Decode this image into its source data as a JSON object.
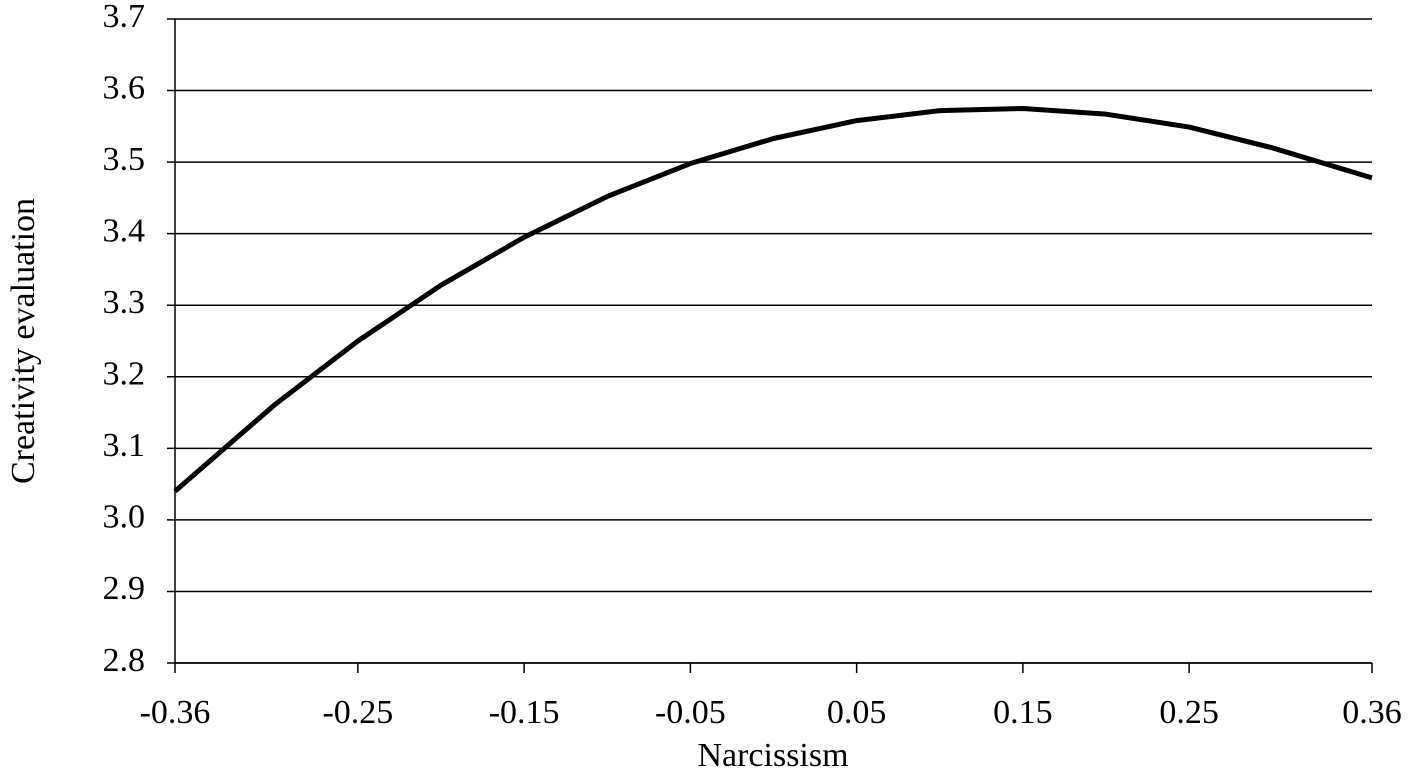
{
  "chart_data": {
    "type": "line",
    "x_label": "Narcissism",
    "y_label": "Creativity evaluation",
    "x": [
      -0.36,
      -0.3,
      -0.25,
      -0.2,
      -0.15,
      -0.1,
      -0.05,
      0,
      0.05,
      0.1,
      0.15,
      0.2,
      0.25,
      0.3,
      0.36
    ],
    "values": [
      3.04,
      3.161,
      3.25,
      3.328,
      3.395,
      3.452,
      3.498,
      3.533,
      3.558,
      3.572,
      3.575,
      3.567,
      3.549,
      3.52,
      3.478
    ],
    "color": "#000000",
    "xlim": [
      -0.36,
      0.36
    ],
    "xticks": [
      -0.36,
      -0.25,
      -0.15,
      -0.05,
      0.05,
      0.15,
      0.25,
      0.36
    ],
    "ylim": [
      2.8,
      3.7
    ],
    "yticks": [
      2.8,
      2.9,
      {
        "value": 3,
        "label": "3.0"
      },
      3.1,
      3.2,
      3.3,
      3.4,
      3.5,
      3.6,
      3.7
    ],
    "grid": true
  }
}
